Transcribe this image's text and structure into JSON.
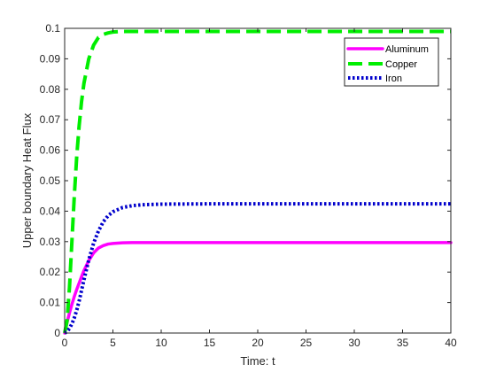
{
  "chart_data": {
    "type": "line",
    "xlabel": "Time: t",
    "ylabel": "Upper boundary Heat Flux",
    "xlim": [
      0,
      40
    ],
    "ylim": [
      0,
      0.1
    ],
    "xticks": [
      0,
      5,
      10,
      15,
      20,
      25,
      30,
      35,
      40
    ],
    "xtick_labels": [
      "0",
      "5",
      "10",
      "15",
      "20",
      "25",
      "30",
      "35",
      "40"
    ],
    "yticks": [
      0,
      0.01,
      0.02,
      0.03,
      0.04,
      0.05,
      0.06,
      0.07,
      0.08,
      0.09,
      0.1
    ],
    "ytick_labels": [
      "0",
      "0.01",
      "0.02",
      "0.03",
      "0.04",
      "0.05",
      "0.06",
      "0.07",
      "0.08",
      "0.09",
      "0.1"
    ],
    "grid": false,
    "legend_position": "top-right",
    "series": [
      {
        "name": "Aluminum",
        "color": "#ff00ff",
        "style": "solid",
        "x": [
          0,
          0.25,
          0.5,
          0.75,
          1,
          1.25,
          1.5,
          1.75,
          2,
          2.5,
          3,
          3.5,
          4,
          4.5,
          5,
          6,
          7,
          8,
          10,
          15,
          20,
          25,
          30,
          35,
          40
        ],
        "y": [
          0,
          0.0035,
          0.0066,
          0.0094,
          0.012,
          0.0143,
          0.0164,
          0.0185,
          0.0205,
          0.0238,
          0.0263,
          0.0279,
          0.0287,
          0.0292,
          0.0294,
          0.0296,
          0.0297,
          0.0297,
          0.0297,
          0.0297,
          0.0297,
          0.0297,
          0.0297,
          0.0297,
          0.0297
        ]
      },
      {
        "name": "Copper",
        "color": "#00ee00",
        "style": "dashed",
        "x": [
          0,
          0.25,
          0.5,
          0.75,
          1,
          1.25,
          1.5,
          1.75,
          2,
          2.5,
          3,
          3.5,
          4,
          4.5,
          5,
          6,
          7,
          8,
          10,
          15,
          20,
          25,
          30,
          35,
          40
        ],
        "y": [
          0,
          0.004,
          0.015,
          0.03,
          0.045,
          0.058,
          0.068,
          0.076,
          0.082,
          0.09,
          0.0945,
          0.097,
          0.098,
          0.0985,
          0.0988,
          0.099,
          0.099,
          0.099,
          0.099,
          0.099,
          0.099,
          0.099,
          0.099,
          0.099,
          0.099
        ]
      },
      {
        "name": "Iron",
        "color": "#0000cc",
        "style": "dotted",
        "x": [
          0,
          0.25,
          0.5,
          0.75,
          1,
          1.25,
          1.5,
          1.75,
          2,
          2.5,
          3,
          3.5,
          4,
          4.5,
          5,
          6,
          7,
          8,
          10,
          15,
          20,
          25,
          30,
          35,
          40
        ],
        "y": [
          0,
          0.0005,
          0.0015,
          0.003,
          0.005,
          0.0075,
          0.0105,
          0.014,
          0.0175,
          0.024,
          0.0295,
          0.0335,
          0.0365,
          0.0385,
          0.0398,
          0.0412,
          0.0418,
          0.0421,
          0.0423,
          0.0424,
          0.0424,
          0.0424,
          0.0424,
          0.0424,
          0.0424
        ]
      }
    ]
  }
}
